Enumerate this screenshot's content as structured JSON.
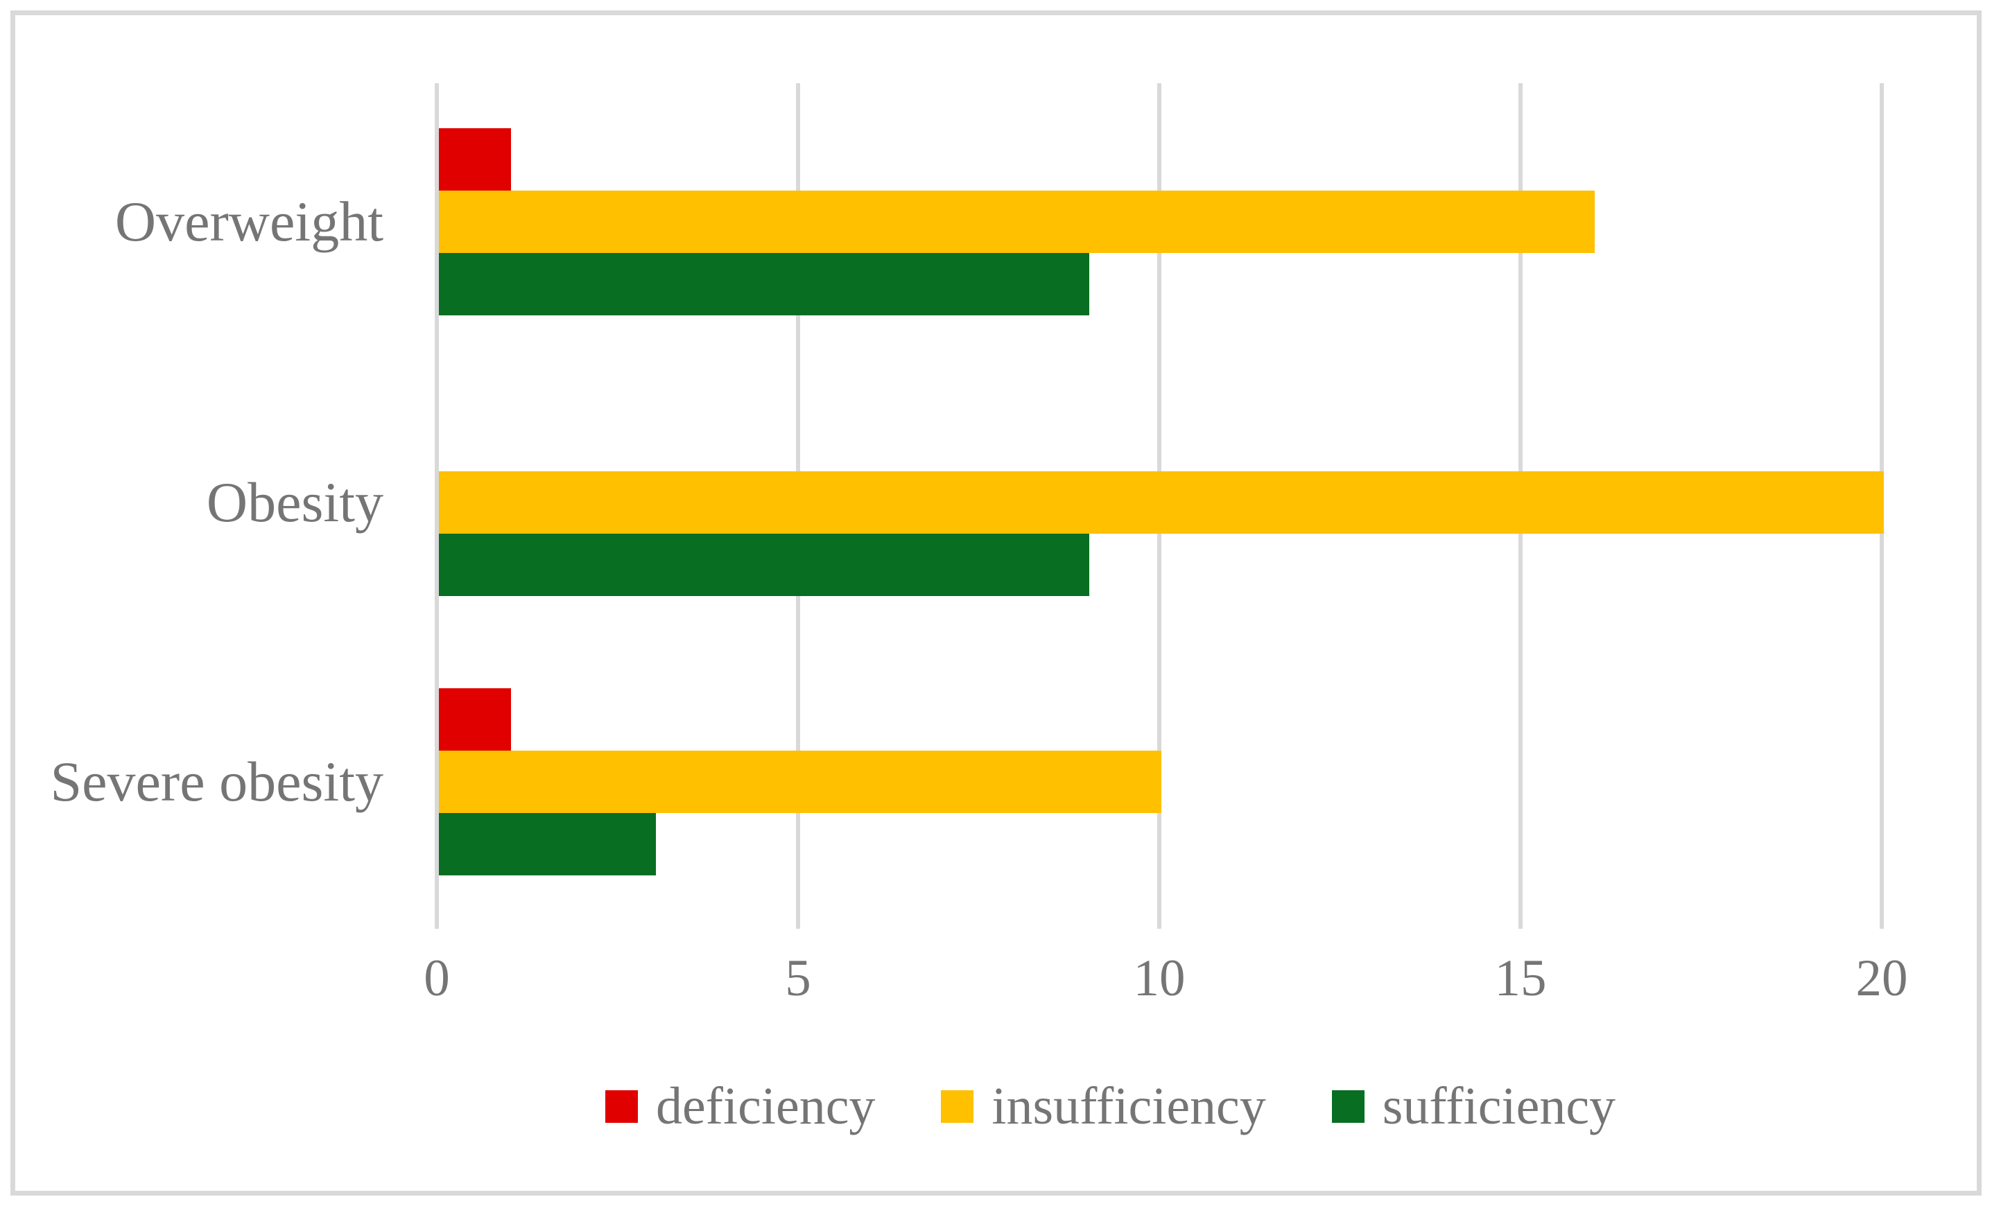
{
  "figure": {
    "background_color": "#FFFFFF",
    "border_color": "#D9D9D9",
    "text_color": "#757575",
    "gridline_color": "#D9D9D9"
  },
  "chart_data": {
    "type": "bar",
    "orientation": "horizontal",
    "title": "",
    "xlabel": "",
    "ylabel": "",
    "categories": [
      "Overweight",
      "Obesity",
      "Severe obesity"
    ],
    "series": [
      {
        "name": "deficiency",
        "color": "#E00000",
        "values": [
          1,
          0,
          1
        ]
      },
      {
        "name": "insufficiency",
        "color": "#FFC000",
        "values": [
          16,
          20,
          10
        ]
      },
      {
        "name": "sufficiency",
        "color": "#076E22",
        "values": [
          9,
          9,
          3
        ]
      }
    ],
    "xlim": [
      0,
      20
    ],
    "x_ticks": [
      "0",
      "5",
      "10",
      "15",
      "20"
    ],
    "grid": true,
    "legend_position": "bottom"
  }
}
